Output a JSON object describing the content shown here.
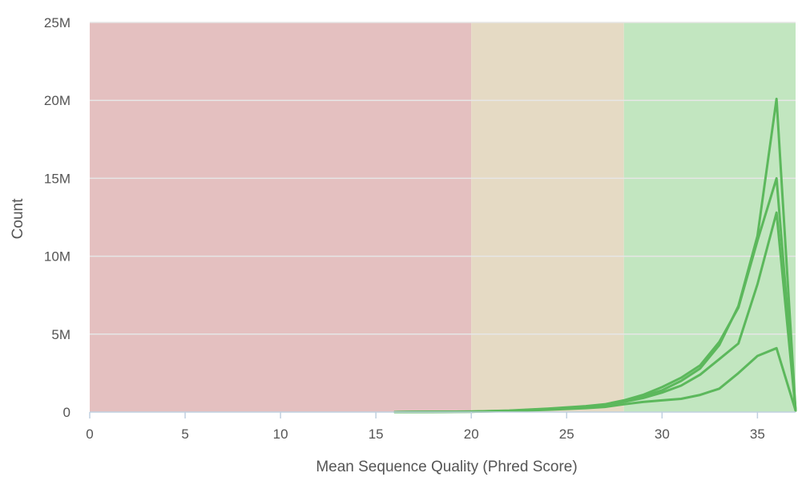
{
  "chart_data": {
    "type": "line",
    "title": "",
    "xlabel": "Mean Sequence Quality (Phred Score)",
    "ylabel": "Count",
    "xlim": [
      0,
      37
    ],
    "ylim": [
      0,
      25000000
    ],
    "x_ticks": [
      0,
      5,
      10,
      15,
      20,
      25,
      30,
      35
    ],
    "x_tick_labels": [
      "0",
      "5",
      "10",
      "15",
      "20",
      "25",
      "30",
      "35"
    ],
    "y_ticks": [
      0,
      5000000,
      10000000,
      15000000,
      20000000,
      25000000
    ],
    "y_tick_labels": [
      "0",
      "5M",
      "10M",
      "15M",
      "20M",
      "25M"
    ],
    "grid": true,
    "legend": "none",
    "bands": [
      {
        "from": 0,
        "to": 20,
        "color": "#e4c0c0"
      },
      {
        "from": 20,
        "to": 28,
        "color": "#e5dac4"
      },
      {
        "from": 28,
        "to": 37,
        "color": "#c2e6c0"
      }
    ],
    "line_color": "#5cb85c",
    "series": [
      {
        "x": [
          16,
          20,
          22,
          24,
          26,
          27,
          28,
          29,
          30,
          31,
          32,
          33,
          34,
          35,
          36,
          37
        ],
        "values": [
          0,
          30000,
          80000,
          200000,
          350000,
          450000,
          700000,
          1000000,
          1400000,
          2000000,
          2800000,
          4300000,
          6800000,
          11300000,
          20100000,
          100000
        ]
      },
      {
        "x": [
          16,
          20,
          22,
          24,
          26,
          27,
          28,
          29,
          30,
          31,
          32,
          33,
          34,
          35,
          36,
          37
        ],
        "values": [
          0,
          30000,
          100000,
          220000,
          380000,
          500000,
          750000,
          1100000,
          1600000,
          2200000,
          3000000,
          4500000,
          6700000,
          11000000,
          15000000,
          100000
        ]
      },
      {
        "x": [
          16,
          20,
          22,
          24,
          26,
          27,
          28,
          29,
          30,
          31,
          32,
          33,
          34,
          35,
          36,
          37
        ],
        "values": [
          0,
          20000,
          70000,
          180000,
          320000,
          420000,
          650000,
          900000,
          1250000,
          1700000,
          2400000,
          3400000,
          4400000,
          8200000,
          12800000,
          100000
        ]
      },
      {
        "x": [
          16,
          20,
          22,
          24,
          26,
          27,
          28,
          29,
          30,
          31,
          32,
          33,
          34,
          35,
          36,
          37
        ],
        "values": [
          0,
          20000,
          60000,
          150000,
          250000,
          330000,
          500000,
          650000,
          750000,
          850000,
          1100000,
          1500000,
          2500000,
          3600000,
          4100000,
          100000
        ]
      }
    ]
  }
}
